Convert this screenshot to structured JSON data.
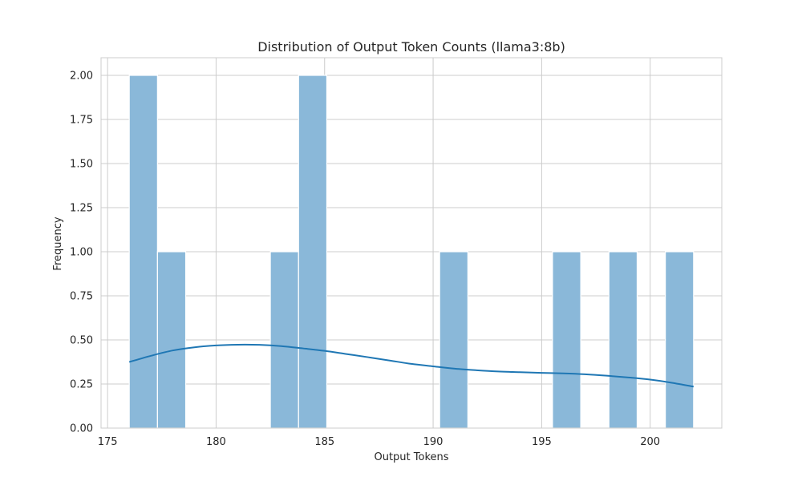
{
  "chart_data": {
    "type": "bar",
    "subtype": "histogram-with-kde",
    "title": "Distribution of Output Token Counts (llama3:8b)",
    "xlabel": "Output Tokens",
    "ylabel": "Frequency",
    "xlim": [
      174.7,
      203.3
    ],
    "ylim": [
      0,
      2.1
    ],
    "xticks": [
      175,
      180,
      185,
      190,
      195,
      200
    ],
    "xtick_labels": [
      "175",
      "180",
      "185",
      "190",
      "195",
      "200"
    ],
    "yticks": [
      0,
      0.25,
      0.5,
      0.75,
      1.0,
      1.25,
      1.5,
      1.75,
      2.0
    ],
    "ytick_labels": [
      "0.00",
      "0.25",
      "0.50",
      "0.75",
      "1.00",
      "1.25",
      "1.50",
      "1.75",
      "2.00"
    ],
    "grid": true,
    "bar_color": "#8ab8d9",
    "line_color": "#1f77b4",
    "grid_color": "#cccccc",
    "bins": [
      {
        "x0": 176.0,
        "x1": 177.3,
        "count": 2
      },
      {
        "x0": 177.3,
        "x1": 178.6,
        "count": 1
      },
      {
        "x0": 182.5,
        "x1": 183.8,
        "count": 1
      },
      {
        "x0": 183.8,
        "x1": 185.1,
        "count": 2
      },
      {
        "x0": 190.3,
        "x1": 191.6,
        "count": 1
      },
      {
        "x0": 195.5,
        "x1": 196.8,
        "count": 1
      },
      {
        "x0": 198.1,
        "x1": 199.4,
        "count": 1
      },
      {
        "x0": 200.7,
        "x1": 202.0,
        "count": 1
      }
    ],
    "kde": {
      "x": [
        176,
        177,
        178,
        179,
        180,
        181,
        182,
        183,
        184,
        185,
        186,
        187,
        188,
        189,
        190,
        191,
        192,
        193,
        194,
        195,
        196,
        197,
        198,
        199,
        200,
        201,
        202
      ],
      "y": [
        0.375,
        0.41,
        0.44,
        0.458,
        0.469,
        0.473,
        0.472,
        0.465,
        0.452,
        0.438,
        0.42,
        0.402,
        0.383,
        0.364,
        0.35,
        0.337,
        0.328,
        0.321,
        0.317,
        0.313,
        0.31,
        0.305,
        0.297,
        0.287,
        0.275,
        0.257,
        0.235
      ]
    }
  }
}
